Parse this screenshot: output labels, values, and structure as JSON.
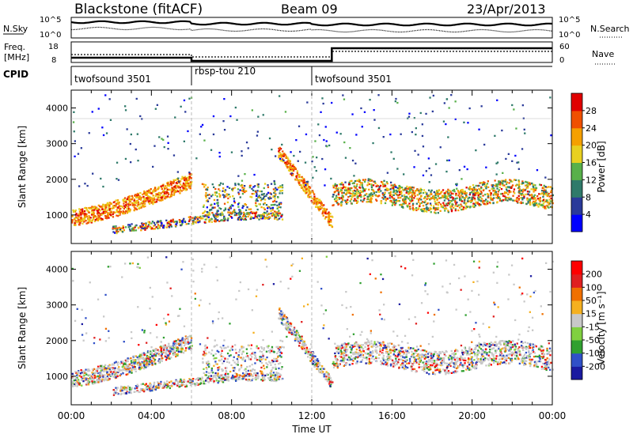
{
  "header": {
    "title": "Blackstone (fitACF)",
    "beam": "Beam 09",
    "date": "23/Apr/2013"
  },
  "strip": {
    "nsky_label": "N.Sky",
    "nsky_ticks": [
      "10^5",
      "10^0"
    ],
    "nsearch_label": "N.Search",
    "nsearch_ticks": [
      "10^5",
      "10^0"
    ],
    "freq_label_line1": "Freq.",
    "freq_label_line2": "[MHz]",
    "freq_ticks": [
      "18",
      "8"
    ],
    "nave_label": "Nave",
    "nave_ticks": [
      "60",
      "0"
    ],
    "cpid_label": "CPID",
    "cpid_segments": [
      {
        "label": "twofsound 3501",
        "start_hour": 0,
        "end_hour": 6
      },
      {
        "label": "rbsp-tou 210",
        "start_hour": 6,
        "end_hour": 12
      },
      {
        "label": "twofsound 3501",
        "start_hour": 12,
        "end_hour": 24
      }
    ]
  },
  "chart_data": [
    {
      "type": "heatmap",
      "name": "power",
      "ylabel": "Slant Range [km]",
      "ylim": [
        200,
        4500
      ],
      "xlim_hours": [
        0,
        24
      ],
      "ytick_labels": [
        "1000",
        "2000",
        "3000",
        "4000"
      ],
      "colorbar": {
        "label": "Power [dB]",
        "ticks": [
          "28",
          "24",
          "20",
          "16",
          "12",
          "8",
          "4"
        ],
        "colors": [
          "#0000ff",
          "#2a3a9a",
          "#2f7a6a",
          "#58b04a",
          "#e8d020",
          "#f5a000",
          "#f05000",
          "#e00000"
        ]
      },
      "features": [
        {
          "desc": "main band",
          "start_hour": 0.0,
          "start_km": 950,
          "end_hour": 6.0,
          "end_km": 2000
        },
        {
          "desc": "lower band",
          "start_hour": 2.0,
          "start_km": 600,
          "end_hour": 10.5,
          "end_km": 1000
        },
        {
          "desc": "descending band",
          "start_hour": 10.3,
          "start_km": 2800,
          "end_hour": 13.0,
          "end_km": 800
        },
        {
          "desc": "flat band",
          "start_hour": 13.0,
          "start_km": 1550,
          "end_hour": 24.0,
          "end_km": 1500
        }
      ]
    },
    {
      "type": "heatmap",
      "name": "velocity",
      "ylabel": "Slant Range [km]",
      "ylim": [
        200,
        4500
      ],
      "xlim_hours": [
        0,
        24
      ],
      "ytick_labels": [
        "1000",
        "2000",
        "3000",
        "4000"
      ],
      "xtick_labels": [
        "00:00",
        "04:00",
        "08:00",
        "12:00",
        "16:00",
        "20:00",
        "00:00"
      ],
      "xlabel": "Time UT",
      "colorbar": {
        "label": "Velocity [m s⁻¹]",
        "ticks": [
          "200",
          "100",
          "50",
          "15",
          "-15",
          "-50",
          "-100",
          "-200"
        ],
        "colors": [
          "#1a1aa0",
          "#3050c8",
          "#30a030",
          "#80d040",
          "#c8c8c8",
          "#f5b020",
          "#f07000",
          "#e02020",
          "#ff0000"
        ]
      }
    }
  ]
}
